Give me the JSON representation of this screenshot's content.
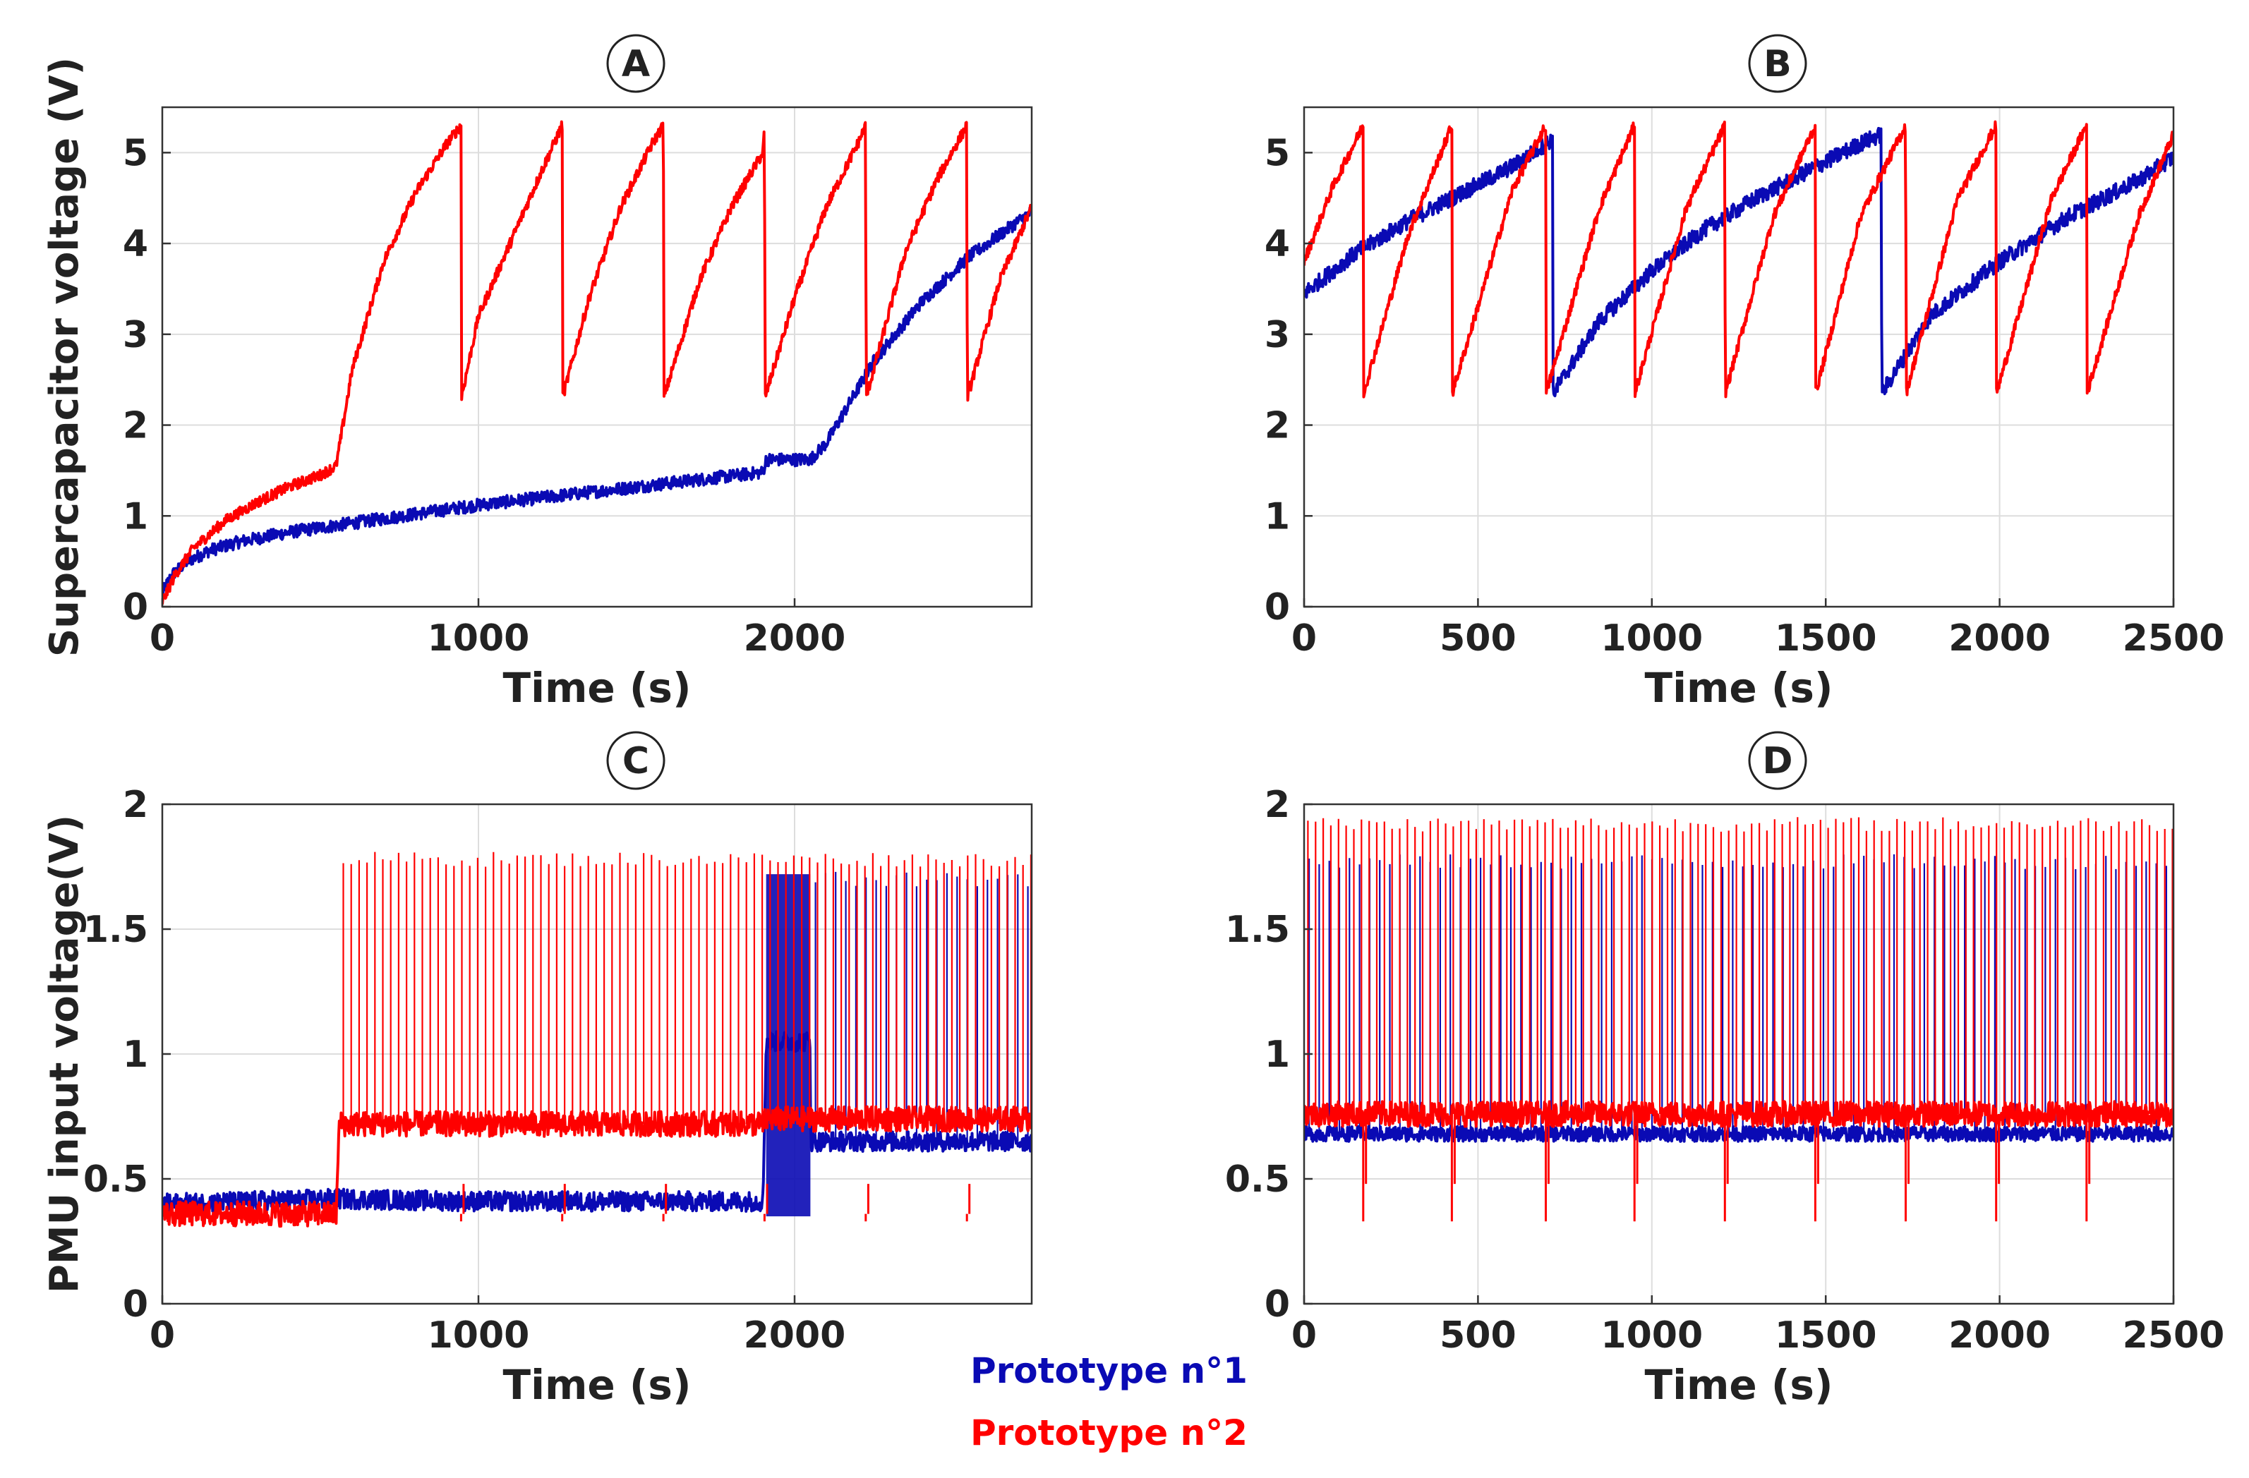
{
  "legend": {
    "series1": "Prototype n°1",
    "series2": "Prototype n°2",
    "color1": "#0a0ab4",
    "color2": "#ff0000"
  },
  "chart_data": [
    {
      "id": "A",
      "type": "line",
      "panel_label": "A",
      "xlabel": "Time (s)",
      "ylabel": "Supercapacitor voltage (V)",
      "xlim": [
        0,
        2750
      ],
      "ylim": [
        0,
        5.5
      ],
      "xticks": [
        0,
        1000,
        2000
      ],
      "xtick_labels": [
        "0",
        "1000",
        "2000"
      ],
      "yticks": [
        0,
        1,
        2,
        3,
        4,
        5
      ],
      "ytick_labels": [
        "0",
        "1",
        "2",
        "3",
        "4",
        "5"
      ],
      "grid": true,
      "series": [
        {
          "name": "Prototype n°1",
          "color": "#0a0ab4",
          "noise": 0.07,
          "x": [
            0,
            30,
            80,
            150,
            250,
            400,
            600,
            800,
            1000,
            1200,
            1400,
            1600,
            1800,
            1900,
            1910,
            2050,
            2100,
            2250,
            2400,
            2550,
            2750
          ],
          "y": [
            0.15,
            0.35,
            0.5,
            0.62,
            0.72,
            0.82,
            0.92,
            1.02,
            1.12,
            1.2,
            1.28,
            1.36,
            1.44,
            1.48,
            1.62,
            1.62,
            1.8,
            2.7,
            3.35,
            3.85,
            4.35
          ]
        },
        {
          "name": "Prototype n°2",
          "color": "#ff0000",
          "noise": 0.06,
          "x": [
            0,
            40,
            100,
            200,
            300,
            400,
            500,
            550,
            600,
            700,
            800,
            900,
            945,
            946,
            1000,
            1100,
            1200,
            1265,
            1266,
            1350,
            1450,
            1550,
            1585,
            1586,
            1700,
            1800,
            1900,
            1905,
            1906,
            2000,
            2100,
            2200,
            2225,
            2226,
            2350,
            2450,
            2545,
            2546,
            2650,
            2750
          ],
          "y": [
            0.05,
            0.35,
            0.65,
            0.95,
            1.15,
            1.32,
            1.45,
            1.55,
            2.6,
            3.8,
            4.55,
            5.1,
            5.3,
            2.3,
            3.2,
            4.0,
            4.8,
            5.3,
            2.3,
            3.4,
            4.4,
            5.1,
            5.3,
            2.3,
            3.6,
            4.4,
            5.0,
            5.3,
            2.3,
            3.4,
            4.4,
            5.1,
            5.3,
            2.3,
            3.9,
            4.7,
            5.3,
            2.3,
            3.6,
            4.4
          ]
        }
      ]
    },
    {
      "id": "B",
      "type": "line",
      "panel_label": "B",
      "xlabel": "Time (s)",
      "ylabel": "",
      "xlim": [
        0,
        2500
      ],
      "ylim": [
        0,
        5.5
      ],
      "xticks": [
        0,
        500,
        1000,
        1500,
        2000,
        2500
      ],
      "xtick_labels": [
        "0",
        "500",
        "1000",
        "1500",
        "2000",
        "2500"
      ],
      "yticks": [
        0,
        1,
        2,
        3,
        4,
        5
      ],
      "ytick_labels": [
        "0",
        "1",
        "2",
        "3",
        "4",
        "5"
      ],
      "grid": true,
      "series": [
        {
          "name": "Prototype n°1",
          "color": "#0a0ab4",
          "noise": 0.09,
          "x": [
            0,
            150,
            300,
            450,
            600,
            715,
            716,
            850,
            1000,
            1150,
            1300,
            1450,
            1600,
            1660,
            1661,
            1800,
            2000,
            2200,
            2400,
            2500
          ],
          "y": [
            3.45,
            3.9,
            4.25,
            4.55,
            4.85,
            5.15,
            2.35,
            3.15,
            3.7,
            4.15,
            4.5,
            4.8,
            5.1,
            5.2,
            2.35,
            3.2,
            3.8,
            4.3,
            4.7,
            4.95
          ]
        },
        {
          "name": "Prototype n°2",
          "color": "#ff0000",
          "noise": 0.06,
          "x": [
            0,
            80,
            170,
            171,
            300,
            425,
            426,
            600,
            695,
            696,
            850,
            950,
            951,
            1100,
            1210,
            1211,
            1350,
            1470,
            1471,
            1600,
            1730,
            1731,
            1880,
            1990,
            1991,
            2150,
            2250,
            2251,
            2400,
            2500
          ],
          "y": [
            3.8,
            4.6,
            5.3,
            2.35,
            4.1,
            5.3,
            2.35,
            4.6,
            5.3,
            2.35,
            4.4,
            5.3,
            2.35,
            4.4,
            5.3,
            2.35,
            4.3,
            5.3,
            2.35,
            4.3,
            5.3,
            2.35,
            4.5,
            5.3,
            2.35,
            4.5,
            5.3,
            2.35,
            4.3,
            5.2
          ]
        }
      ]
    },
    {
      "id": "C",
      "type": "line",
      "panel_label": "C",
      "xlabel": "Time (s)",
      "ylabel": "PMU input voltage(V)",
      "xlim": [
        0,
        2750
      ],
      "ylim": [
        0,
        2
      ],
      "xticks": [
        0,
        1000,
        2000
      ],
      "xtick_labels": [
        "0",
        "1000",
        "2000"
      ],
      "yticks": [
        0,
        0.5,
        1,
        1.5,
        2
      ],
      "ytick_labels": [
        "0",
        "0.5",
        "1",
        "1.5",
        "2"
      ],
      "grid": true,
      "series": [
        {
          "name": "Prototype n°1",
          "color": "#0a0ab4",
          "noise": 0.04,
          "x": [
            0,
            550,
            1000,
            1500,
            1900,
            1910,
            2050,
            2051,
            2750
          ],
          "y": [
            0.4,
            0.42,
            0.41,
            0.41,
            0.41,
            1.05,
            1.05,
            0.65,
            0.65
          ],
          "spikes": {
            "start": 2050,
            "end": 2750,
            "period": 32,
            "high": 1.7,
            "low": 0.65
          },
          "burst": {
            "start": 1910,
            "end": 2050,
            "high": 1.72,
            "low": 0.35
          }
        },
        {
          "name": "Prototype n°2",
          "color": "#ff0000",
          "noise": 0.05,
          "x": [
            0,
            550,
            560,
            1900,
            1910,
            2750
          ],
          "y": [
            0.36,
            0.36,
            0.72,
            0.72,
            0.74,
            0.74
          ],
          "spikes": {
            "start": 560,
            "end": 2750,
            "period": 25,
            "high": 1.78,
            "low": 0.72
          },
          "dips": [
            945,
            1265,
            1585,
            1905,
            2225,
            2545
          ],
          "dip_low": 0.33
        }
      ]
    },
    {
      "id": "D",
      "type": "line",
      "panel_label": "D",
      "xlabel": "Time (s)",
      "ylabel": "",
      "xlim": [
        0,
        2500
      ],
      "ylim": [
        0,
        2
      ],
      "xticks": [
        0,
        500,
        1000,
        1500,
        2000,
        2500
      ],
      "xtick_labels": [
        "0",
        "500",
        "1000",
        "1500",
        "2000",
        "2500"
      ],
      "yticks": [
        0,
        0.5,
        1,
        1.5,
        2
      ],
      "ytick_labels": [
        "0",
        "0.5",
        "1",
        "1.5",
        "2"
      ],
      "grid": true,
      "series": [
        {
          "name": "Prototype n°1",
          "color": "#0a0ab4",
          "noise": 0.03,
          "x": [
            0,
            2500
          ],
          "y": [
            0.68,
            0.68
          ],
          "spikes": {
            "start": 0,
            "end": 2500,
            "period": 29,
            "high": 1.77,
            "low": 0.68
          }
        },
        {
          "name": "Prototype n°2",
          "color": "#ff0000",
          "noise": 0.05,
          "x": [
            0,
            2500
          ],
          "y": [
            0.76,
            0.76
          ],
          "spikes": {
            "start": 0,
            "end": 2500,
            "period": 22,
            "high": 1.92,
            "low": 0.76
          },
          "dips": [
            170,
            425,
            695,
            950,
            1210,
            1470,
            1730,
            1990,
            2250
          ],
          "dip_low": 0.33
        }
      ]
    }
  ]
}
